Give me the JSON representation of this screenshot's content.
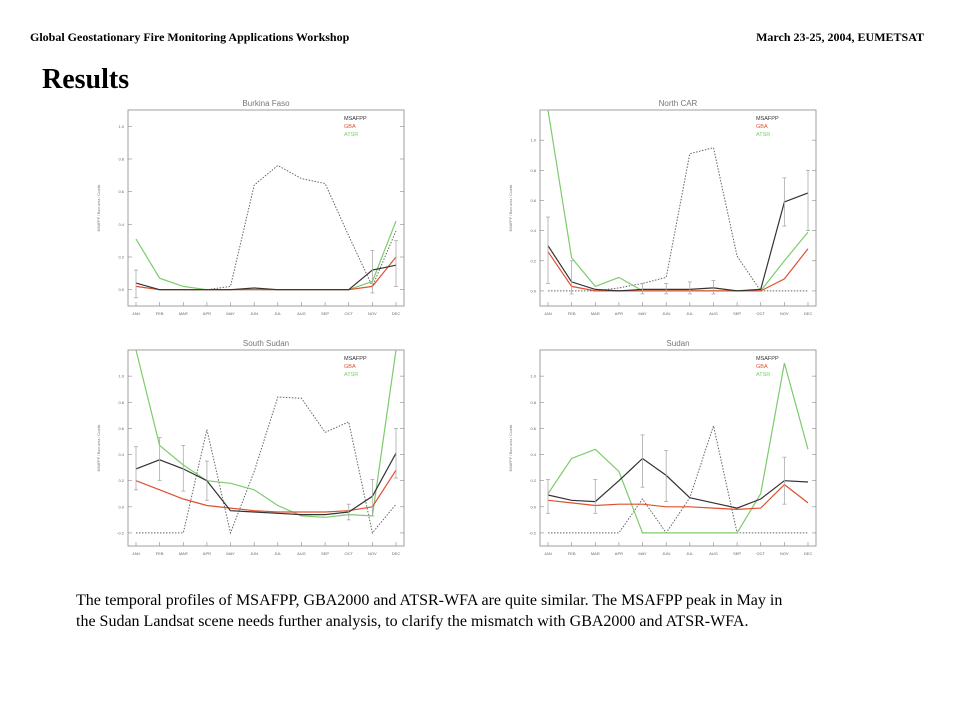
{
  "header": {
    "left": "Global Geostationary Fire Monitoring Applications Workshop",
    "right": "March 23-25, 2004, EUMETSAT"
  },
  "page_title": "Results",
  "caption": {
    "line1": "The temporal profiles of MSAFPP, GBA2000 and ATSR-WFA are quite similar. The MSAFPP peak in May in",
    "line2": "the Sudan Landsat scene needs further analysis, to clarify the mismatch with GBA2000 and ATSR-WFA."
  },
  "colors": {
    "msafpp": "#333333",
    "gba": "#e05030",
    "atsr": "#7ccc6c",
    "landsat": "#666666",
    "axis": "#888888"
  },
  "chart_data": [
    {
      "type": "line",
      "title": "Burkina Faso",
      "ylabel": "MSAFPP / Burn area / Counts",
      "ylim": [
        -0.1,
        1.1
      ],
      "yticks": [
        "0.0",
        "0.2",
        "0.4",
        "0.6",
        "0.8",
        "1.0"
      ],
      "categories": [
        "JAN",
        "FEB",
        "MAR",
        "APR",
        "MAY",
        "JUN",
        "JUL",
        "AUG",
        "SEP",
        "OCT",
        "NOV",
        "DEC"
      ],
      "legend": [
        "MSAFPP",
        "GBA",
        "ATSR"
      ],
      "series": [
        {
          "name": "MSAFPP",
          "values": [
            0.04,
            0.0,
            0.0,
            0.0,
            0.0,
            0.01,
            0.0,
            0.0,
            0.0,
            0.0,
            0.12,
            0.15
          ]
        },
        {
          "name": "GBA",
          "values": [
            0.02,
            0.0,
            0.0,
            0.0,
            0.0,
            0.0,
            0.0,
            0.0,
            0.0,
            0.0,
            0.02,
            0.2
          ]
        },
        {
          "name": "ATSR",
          "values": [
            0.31,
            0.07,
            0.02,
            0.0,
            0.0,
            0.0,
            0.0,
            0.0,
            0.0,
            0.0,
            0.05,
            0.42
          ]
        },
        {
          "name": "",
          "values": [
            0.02,
            0.0,
            0.0,
            0.0,
            0.02,
            0.64,
            0.76,
            0.68,
            0.65,
            0.33,
            0.02,
            0.36
          ]
        }
      ],
      "error_bars": [
        {
          "month": "JAN",
          "low": -0.05,
          "high": 0.12
        },
        {
          "month": "NOV",
          "low": -0.02,
          "high": 0.24
        },
        {
          "month": "DEC",
          "low": 0.02,
          "high": 0.3
        }
      ]
    },
    {
      "type": "line",
      "title": "North CAR",
      "ylabel": "MSAFPP / Burn area / Counts",
      "ylim": [
        -0.1,
        1.2
      ],
      "yticks": [
        "0.0",
        "0.2",
        "0.4",
        "0.6",
        "0.8",
        "1.0"
      ],
      "categories": [
        "JAN",
        "FEB",
        "MAR",
        "APR",
        "MAY",
        "JUN",
        "JUL",
        "AUG",
        "SEP",
        "OCT",
        "NOV",
        "DEC"
      ],
      "legend": [
        "MSAFPP",
        "GBA",
        "ATSR"
      ],
      "series": [
        {
          "name": "MSAFPP",
          "values": [
            0.3,
            0.06,
            0.01,
            0.0,
            0.01,
            0.01,
            0.01,
            0.02,
            0.0,
            0.01,
            0.59,
            0.65
          ]
        },
        {
          "name": "GBA",
          "values": [
            0.26,
            0.03,
            0.0,
            0.0,
            0.0,
            0.0,
            0.0,
            0.0,
            0.0,
            0.0,
            0.08,
            0.28
          ]
        },
        {
          "name": "ATSR",
          "values": [
            1.2,
            0.22,
            0.03,
            0.09,
            0.0,
            0.0,
            0.0,
            0.0,
            0.0,
            0.0,
            0.2,
            0.39
          ]
        },
        {
          "name": "",
          "values": [
            0.0,
            0.0,
            0.0,
            0.02,
            0.05,
            0.09,
            0.91,
            0.95,
            0.23,
            0.0,
            0.0,
            0.0
          ]
        }
      ],
      "error_bars": [
        {
          "month": "JAN",
          "low": 0.05,
          "high": 0.49
        },
        {
          "month": "FEB",
          "low": -0.02,
          "high": 0.2
        },
        {
          "month": "MAY",
          "low": -0.02,
          "high": 0.05
        },
        {
          "month": "JUN",
          "low": -0.02,
          "high": 0.05
        },
        {
          "month": "JUL",
          "low": -0.02,
          "high": 0.06
        },
        {
          "month": "AUG",
          "low": -0.02,
          "high": 0.07
        },
        {
          "month": "NOV",
          "low": 0.43,
          "high": 0.75
        },
        {
          "month": "DEC",
          "low": 0.4,
          "high": 0.8
        }
      ]
    },
    {
      "type": "line",
      "title": "South Sudan",
      "ylabel": "MSAFPP / Burn area / Counts",
      "ylim": [
        -0.3,
        1.2
      ],
      "yticks": [
        "-0.2",
        "0.0",
        "0.2",
        "0.4",
        "0.6",
        "0.8",
        "1.0"
      ],
      "categories": [
        "JAN",
        "FEB",
        "MAR",
        "APR",
        "MAY",
        "JUN",
        "JUL",
        "AUG",
        "SEP",
        "OCT",
        "NOV",
        "DEC"
      ],
      "legend": [
        "MSAFPP",
        "GBA",
        "ATSR"
      ],
      "series": [
        {
          "name": "MSAFPP",
          "values": [
            0.29,
            0.36,
            0.29,
            0.2,
            -0.03,
            -0.04,
            -0.05,
            -0.06,
            -0.06,
            -0.04,
            0.08,
            0.41
          ]
        },
        {
          "name": "GBA",
          "values": [
            0.2,
            0.13,
            0.06,
            0.01,
            -0.01,
            -0.03,
            -0.04,
            -0.04,
            -0.04,
            -0.03,
            0.0,
            0.28
          ]
        },
        {
          "name": "ATSR",
          "values": [
            1.2,
            0.47,
            0.32,
            0.2,
            0.18,
            0.13,
            0.01,
            -0.07,
            -0.08,
            -0.06,
            -0.07,
            1.2
          ]
        },
        {
          "name": "",
          "values": [
            -0.2,
            -0.2,
            -0.2,
            0.59,
            -0.2,
            0.27,
            0.84,
            0.83,
            0.57,
            0.65,
            -0.2,
            0.02
          ]
        }
      ],
      "error_bars": [
        {
          "month": "JAN",
          "low": 0.13,
          "high": 0.46
        },
        {
          "month": "FEB",
          "low": 0.2,
          "high": 0.53
        },
        {
          "month": "MAR",
          "low": 0.12,
          "high": 0.47
        },
        {
          "month": "APR",
          "low": 0.05,
          "high": 0.35
        },
        {
          "month": "OCT",
          "low": -0.1,
          "high": 0.02
        },
        {
          "month": "NOV",
          "low": -0.07,
          "high": 0.21
        },
        {
          "month": "DEC",
          "low": 0.22,
          "high": 0.6
        }
      ]
    },
    {
      "type": "line",
      "title": "Sudan",
      "ylabel": "MSAFPP / Burn area / Counts",
      "ylim": [
        -0.3,
        1.2
      ],
      "yticks": [
        "-0.2",
        "0.0",
        "0.2",
        "0.4",
        "0.6",
        "0.8",
        "1.0"
      ],
      "categories": [
        "JAN",
        "FEB",
        "MAR",
        "APR",
        "MAY",
        "JUN",
        "JUL",
        "AUG",
        "SEP",
        "OCT",
        "NOV",
        "DEC"
      ],
      "legend": [
        "MSAFPP",
        "GBA",
        "ATSR"
      ],
      "series": [
        {
          "name": "MSAFPP",
          "values": [
            0.09,
            0.05,
            0.04,
            0.2,
            0.37,
            0.24,
            0.07,
            0.03,
            -0.01,
            0.06,
            0.2,
            0.19
          ]
        },
        {
          "name": "GBA",
          "values": [
            0.05,
            0.03,
            0.01,
            0.02,
            0.02,
            0.0,
            0.0,
            -0.01,
            -0.02,
            -0.01,
            0.17,
            0.03
          ]
        },
        {
          "name": "ATSR",
          "values": [
            0.1,
            0.37,
            0.44,
            0.27,
            -0.2,
            -0.2,
            -0.2,
            -0.2,
            -0.2,
            0.1,
            1.1,
            0.44
          ]
        },
        {
          "name": "",
          "values": [
            -0.2,
            -0.2,
            -0.2,
            -0.2,
            0.06,
            -0.2,
            0.07,
            0.62,
            -0.2,
            -0.2,
            -0.2,
            -0.2
          ]
        }
      ],
      "error_bars": [
        {
          "month": "JAN",
          "low": -0.05,
          "high": 0.21
        },
        {
          "month": "MAR",
          "low": -0.05,
          "high": 0.21
        },
        {
          "month": "MAY",
          "low": 0.15,
          "high": 0.55
        },
        {
          "month": "JUN",
          "low": 0.04,
          "high": 0.43
        },
        {
          "month": "NOV",
          "low": 0.02,
          "high": 0.38
        }
      ]
    }
  ]
}
